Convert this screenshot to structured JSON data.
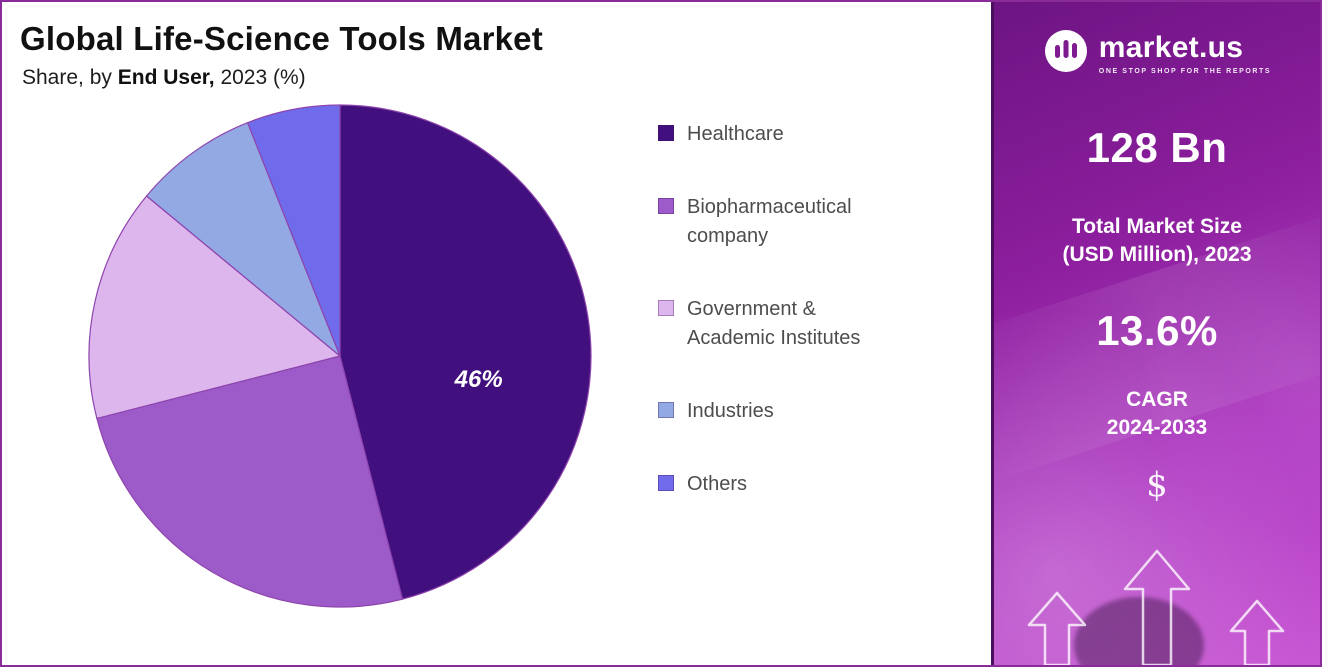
{
  "title": "Global Life-Science Tools Market",
  "subtitle": {
    "prefix": "Share, by ",
    "emphasis": "End User,",
    "suffix": "  2023 (%)"
  },
  "chart_data": {
    "type": "pie",
    "title": "Global Life-Science Tools Market",
    "subtitle": "Share, by End User, 2023 (%)",
    "unit": "%",
    "labels": [
      "Healthcare",
      "Biopharmaceutical company",
      "Government & Academic Institutes",
      "Industries",
      "Others"
    ],
    "values": [
      46,
      25,
      15,
      8,
      6
    ],
    "colors": [
      "#42107E",
      "#9C5BC8",
      "#DCB6EC",
      "#93A9E4",
      "#6F6BEB"
    ],
    "start_angle_deg": 0,
    "direction": "clockwise",
    "legend_position": "right",
    "slice_label": {
      "slice": "Healthcare",
      "text": "46%"
    }
  },
  "sidebar": {
    "brand": "market.us",
    "tagline": "ONE STOP SHOP FOR THE REPORTS",
    "stat1_value": "128 Bn",
    "stat1_label_line1": "Total Market Size",
    "stat1_label_line2": "(USD Million), 2023",
    "stat2_value": "13.6%",
    "stat2_label_line1": "CAGR",
    "stat2_label_line2": "2024-2033",
    "currency_symbol": "$"
  }
}
